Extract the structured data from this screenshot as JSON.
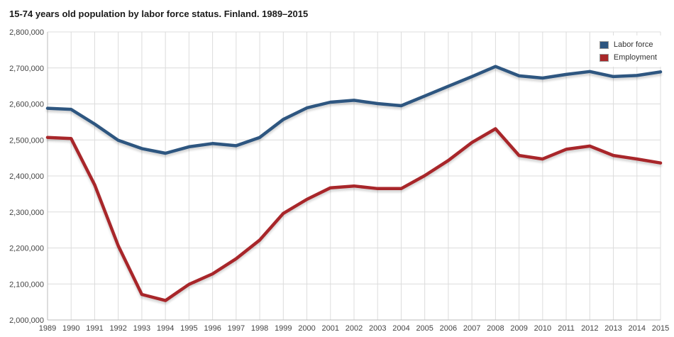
{
  "chart_data": {
    "type": "line",
    "title": "15-74 years old population by labor force status. Finland. 1989–2015",
    "xlabel": "",
    "ylabel": "",
    "ylim": [
      2000000,
      2800000
    ],
    "yticks": [
      "2,000,000",
      "2,100,000",
      "2,200,000",
      "2,300,000",
      "2,400,000",
      "2,500,000",
      "2,600,000",
      "2,700,000",
      "2,800,000"
    ],
    "categories": [
      "1989",
      "1990",
      "1991",
      "1992",
      "1993",
      "1994",
      "1995",
      "1996",
      "1997",
      "1998",
      "1999",
      "2000",
      "2001",
      "2002",
      "2003",
      "2004",
      "2005",
      "2006",
      "2007",
      "2008",
      "2009",
      "2010",
      "2011",
      "2012",
      "2013",
      "2014",
      "2015"
    ],
    "series": [
      {
        "name": "Labor force",
        "color": "#2e5680",
        "values": [
          2588000,
          2585000,
          2544000,
          2499000,
          2476000,
          2463000,
          2481000,
          2490000,
          2484000,
          2507000,
          2557000,
          2589000,
          2605000,
          2610000,
          2601000,
          2595000,
          2622000,
          2649000,
          2676000,
          2704000,
          2678000,
          2672000,
          2682000,
          2690000,
          2676000,
          2679000,
          2689000
        ]
      },
      {
        "name": "Employment",
        "color": "#a8282a",
        "values": [
          2507000,
          2504000,
          2375000,
          2206000,
          2071000,
          2054000,
          2099000,
          2128000,
          2170000,
          2222000,
          2296000,
          2335000,
          2367000,
          2372000,
          2365000,
          2365000,
          2401000,
          2443000,
          2493000,
          2531000,
          2457000,
          2447000,
          2474000,
          2483000,
          2457000,
          2447000,
          2436000
        ]
      }
    ]
  }
}
